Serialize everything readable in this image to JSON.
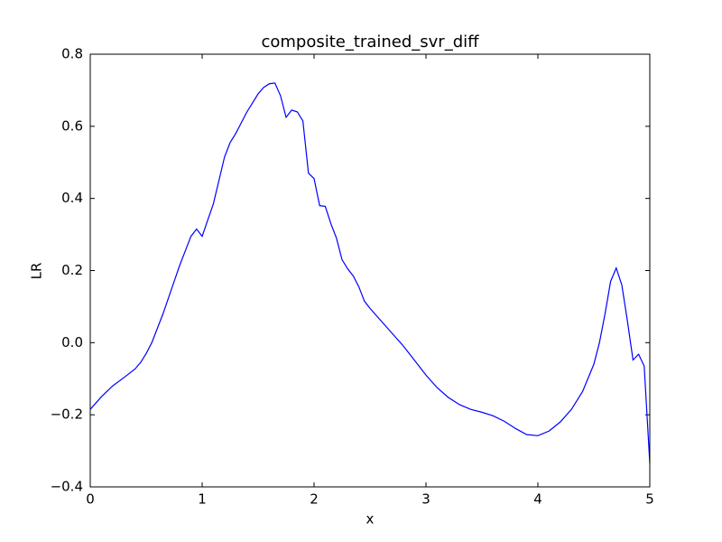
{
  "chart_data": {
    "type": "line",
    "title": "composite_trained_svr_diff",
    "x_label": "x",
    "y_label": "LR",
    "x": [
      0,
      0.1,
      0.2,
      0.3,
      0.4,
      0.45,
      0.5,
      0.55,
      0.6,
      0.65,
      0.7,
      0.75,
      0.8,
      0.85,
      0.9,
      0.95,
      1.0,
      1.05,
      1.1,
      1.15,
      1.2,
      1.25,
      1.3,
      1.35,
      1.4,
      1.45,
      1.5,
      1.55,
      1.6,
      1.65,
      1.7,
      1.75,
      1.8,
      1.85,
      1.9,
      1.95,
      2.0,
      2.05,
      2.1,
      2.15,
      2.2,
      2.25,
      2.3,
      2.35,
      2.4,
      2.45,
      2.5,
      2.6,
      2.7,
      2.8,
      2.9,
      3.0,
      3.1,
      3.2,
      3.3,
      3.4,
      3.5,
      3.6,
      3.7,
      3.8,
      3.9,
      4.0,
      4.1,
      4.2,
      4.3,
      4.4,
      4.5,
      4.55,
      4.6,
      4.65,
      4.7,
      4.75,
      4.8,
      4.85,
      4.9,
      4.95,
      5.0
    ],
    "series": [
      {
        "color": "#0000ff",
        "values": [
          -0.185,
          -0.15,
          -0.12,
          -0.097,
          -0.073,
          -0.055,
          -0.03,
          0.0,
          0.04,
          0.08,
          0.125,
          0.17,
          0.215,
          0.255,
          0.295,
          0.315,
          0.295,
          0.34,
          0.385,
          0.45,
          0.515,
          0.555,
          0.58,
          0.61,
          0.64,
          0.665,
          0.69,
          0.708,
          0.718,
          0.72,
          0.685,
          0.625,
          0.645,
          0.64,
          0.615,
          0.47,
          0.455,
          0.38,
          0.378,
          0.33,
          0.29,
          0.23,
          0.205,
          0.185,
          0.155,
          0.115,
          0.095,
          0.06,
          0.025,
          -0.01,
          -0.05,
          -0.09,
          -0.125,
          -0.152,
          -0.172,
          -0.185,
          -0.193,
          -0.203,
          -0.218,
          -0.238,
          -0.255,
          -0.258,
          -0.245,
          -0.22,
          -0.185,
          -0.135,
          -0.06,
          0.0,
          0.08,
          0.17,
          0.207,
          0.16,
          0.06,
          -0.048,
          -0.032,
          -0.065,
          -0.335
        ]
      }
    ],
    "xlim": [
      0,
      5
    ],
    "xticks": [
      0,
      1,
      2,
      3,
      4,
      5
    ],
    "ylim": [
      -0.4,
      0.8
    ],
    "yticks": [
      {
        "value": -0.4,
        "label": "−0.4"
      },
      {
        "value": -0.2,
        "label": "−0.2"
      },
      {
        "value": 0,
        "label": "0.0"
      },
      0.2,
      0.4,
      0.6,
      0.8
    ]
  }
}
